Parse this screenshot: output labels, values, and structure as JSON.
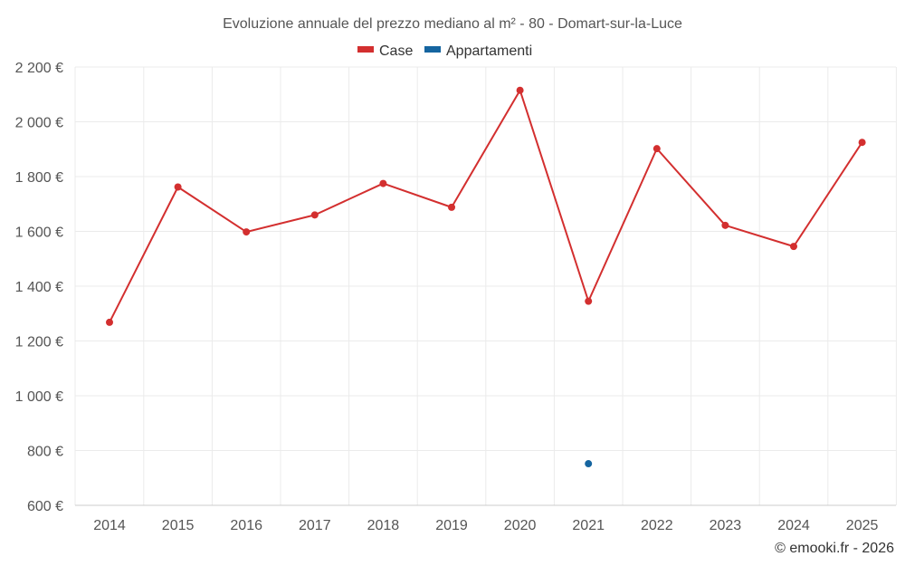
{
  "chart_data": {
    "type": "line",
    "title": "Evoluzione annuale del prezzo mediano al m² - 80 - Domart-sur-la-Luce",
    "xlabel": "",
    "ylabel": "",
    "categories": [
      "2014",
      "2015",
      "2016",
      "2017",
      "2018",
      "2019",
      "2020",
      "2021",
      "2022",
      "2023",
      "2024",
      "2025"
    ],
    "y_ticks": [
      600,
      800,
      1000,
      1200,
      1400,
      1600,
      1800,
      2000,
      2200
    ],
    "y_tick_labels": [
      "600 €",
      "800 €",
      "1 000 €",
      "1 200 €",
      "1 400 €",
      "1 600 €",
      "1 800 €",
      "2 000 €",
      "2 200 €"
    ],
    "ylim": [
      600,
      2200
    ],
    "grid": true,
    "legend_position": "top-center",
    "series": [
      {
        "name": "Case",
        "color": "#d32f2f",
        "values": [
          1268,
          1762,
          1598,
          1660,
          1775,
          1688,
          2115,
          1345,
          1902,
          1622,
          1545,
          1925
        ]
      },
      {
        "name": "Appartamenti",
        "color": "#1565a0",
        "values": [
          null,
          null,
          null,
          null,
          null,
          null,
          null,
          752,
          null,
          null,
          null,
          null
        ]
      }
    ],
    "credit": "© emooki.fr - 2026"
  }
}
